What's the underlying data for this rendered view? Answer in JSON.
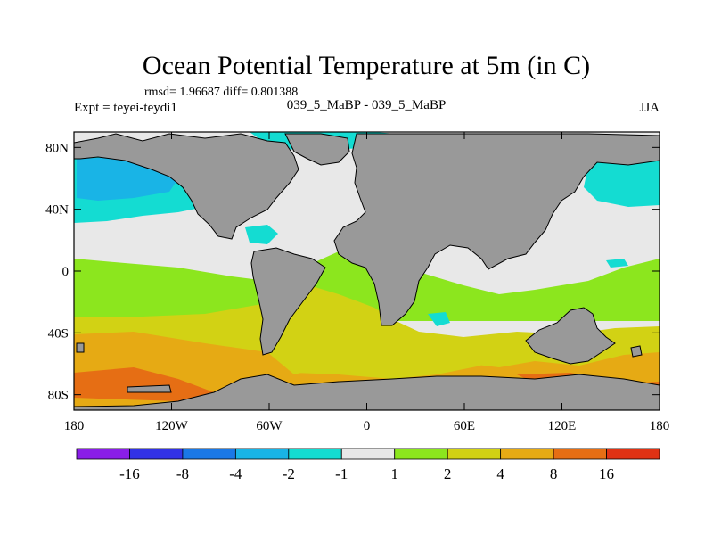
{
  "chart_data": {
    "type": "heatmap",
    "title": "Ocean Potential Temperature at 5m (in C)",
    "stats_line": "rmsd= 1.96687 diff= 0.801388",
    "experiment_label": "Expt = teyei-teydi1",
    "comparison_label": "039_5_MaBP - 039_5_MaBP",
    "season": "JJA",
    "x_axis": {
      "range": [
        -180,
        180
      ],
      "tick_labels": [
        "180",
        "120W",
        "60W",
        "0",
        "60E",
        "120E",
        "180"
      ]
    },
    "y_axis": {
      "range": [
        -90,
        90
      ],
      "tick_labels": [
        "80N",
        "40N",
        "0",
        "40S",
        "80S"
      ]
    },
    "land_color": "#999999",
    "colorbar": {
      "labels": [
        "-16",
        "-8",
        "-4",
        "-2",
        "-1",
        "1",
        "2",
        "4",
        "8",
        "16"
      ],
      "colors": [
        "#8a1ee8",
        "#3232e6",
        "#1a78e6",
        "#19b4e6",
        "#14dcd2",
        "#e8e8e8",
        "#8ce61e",
        "#d2d214",
        "#e6aa14",
        "#e66e14",
        "#e03214"
      ]
    },
    "value_regions": [
      {
        "name": "northern-high-latitude-ocean",
        "level": "-2 to -1",
        "color": "#14dcd2"
      },
      {
        "name": "tropical-ocean",
        "level": "-1 to 1",
        "color": "#e8e8e8"
      },
      {
        "name": "southern-ocean",
        "level": "2 to 4",
        "color": "#d2d214"
      },
      {
        "name": "antarctic-margin",
        "level": "4 to 8",
        "color": "#e6aa14"
      }
    ]
  }
}
